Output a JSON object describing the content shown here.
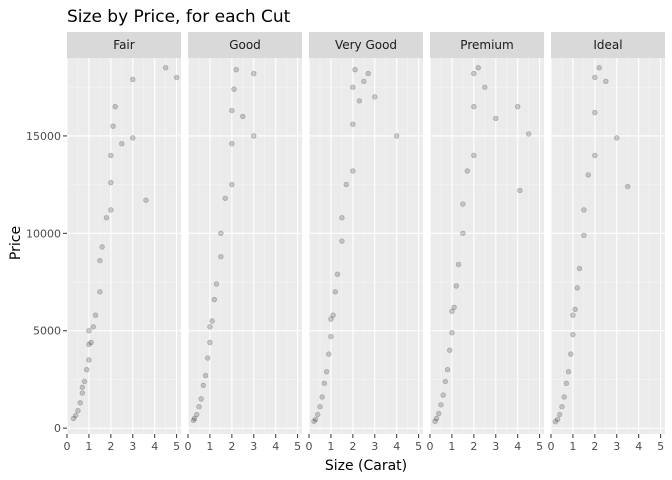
{
  "chart_data": {
    "type": "scatter",
    "title": "Size by Price, for each Cut",
    "xlabel": "Size (Carat)",
    "ylabel": "Price",
    "xlim": [
      0,
      5.2
    ],
    "ylim": [
      -300,
      19000
    ],
    "x_ticks": [
      0,
      1,
      2,
      3,
      4,
      5
    ],
    "y_ticks": [
      0,
      5000,
      10000,
      15000
    ],
    "y_tick_labels": [
      "0",
      "5000",
      "10000",
      "15000"
    ],
    "grid": true,
    "point_color": "#000000",
    "point_opacity": 0.06,
    "panel_background": "#ebebeb",
    "strip_background": "#d9d9d9",
    "facets": [
      {
        "name": "Fair",
        "points": [
          [
            0.3,
            500
          ],
          [
            0.4,
            650
          ],
          [
            0.5,
            900
          ],
          [
            0.6,
            1300
          ],
          [
            0.7,
            1800
          ],
          [
            0.7,
            2100
          ],
          [
            0.8,
            2400
          ],
          [
            0.9,
            3000
          ],
          [
            1.0,
            3500
          ],
          [
            1.0,
            4300
          ],
          [
            1.0,
            5000
          ],
          [
            1.1,
            4400
          ],
          [
            1.2,
            5200
          ],
          [
            1.3,
            5800
          ],
          [
            1.5,
            7000
          ],
          [
            1.5,
            8600
          ],
          [
            1.6,
            9300
          ],
          [
            1.8,
            10800
          ],
          [
            2.0,
            11200
          ],
          [
            2.0,
            12600
          ],
          [
            2.0,
            14000
          ],
          [
            2.1,
            15500
          ],
          [
            2.2,
            16500
          ],
          [
            2.5,
            14600
          ],
          [
            3.0,
            14900
          ],
          [
            3.0,
            17900
          ],
          [
            3.6,
            11700
          ],
          [
            4.5,
            18500
          ],
          [
            5.0,
            18000
          ]
        ]
      },
      {
        "name": "Good",
        "points": [
          [
            0.25,
            400
          ],
          [
            0.3,
            500
          ],
          [
            0.4,
            700
          ],
          [
            0.5,
            1100
          ],
          [
            0.6,
            1500
          ],
          [
            0.7,
            2200
          ],
          [
            0.8,
            2700
          ],
          [
            0.9,
            3600
          ],
          [
            1.0,
            4400
          ],
          [
            1.0,
            5200
          ],
          [
            1.1,
            5500
          ],
          [
            1.2,
            6600
          ],
          [
            1.3,
            7400
          ],
          [
            1.5,
            8800
          ],
          [
            1.5,
            10000
          ],
          [
            1.7,
            11800
          ],
          [
            2.0,
            12500
          ],
          [
            2.0,
            14600
          ],
          [
            2.0,
            16300
          ],
          [
            2.1,
            17400
          ],
          [
            2.2,
            18400
          ],
          [
            2.5,
            16000
          ],
          [
            3.0,
            18200
          ],
          [
            3.0,
            15000
          ]
        ]
      },
      {
        "name": "Very Good",
        "points": [
          [
            0.23,
            350
          ],
          [
            0.3,
            450
          ],
          [
            0.4,
            700
          ],
          [
            0.5,
            1100
          ],
          [
            0.6,
            1600
          ],
          [
            0.7,
            2300
          ],
          [
            0.8,
            2900
          ],
          [
            0.9,
            3800
          ],
          [
            1.0,
            4700
          ],
          [
            1.0,
            5600
          ],
          [
            1.1,
            5800
          ],
          [
            1.2,
            7000
          ],
          [
            1.3,
            7900
          ],
          [
            1.5,
            9600
          ],
          [
            1.5,
            10800
          ],
          [
            1.7,
            12500
          ],
          [
            2.0,
            13200
          ],
          [
            2.0,
            15600
          ],
          [
            2.0,
            17500
          ],
          [
            2.1,
            18400
          ],
          [
            2.3,
            16800
          ],
          [
            2.5,
            17800
          ],
          [
            2.7,
            18200
          ],
          [
            3.0,
            17000
          ],
          [
            4.0,
            15000
          ]
        ]
      },
      {
        "name": "Premium",
        "points": [
          [
            0.23,
            350
          ],
          [
            0.3,
            500
          ],
          [
            0.4,
            750
          ],
          [
            0.5,
            1200
          ],
          [
            0.6,
            1700
          ],
          [
            0.7,
            2400
          ],
          [
            0.8,
            3000
          ],
          [
            0.9,
            4000
          ],
          [
            1.0,
            4900
          ],
          [
            1.0,
            6000
          ],
          [
            1.1,
            6200
          ],
          [
            1.2,
            7300
          ],
          [
            1.3,
            8400
          ],
          [
            1.5,
            10000
          ],
          [
            1.5,
            11500
          ],
          [
            1.7,
            13200
          ],
          [
            2.0,
            14000
          ],
          [
            2.0,
            16500
          ],
          [
            2.0,
            18200
          ],
          [
            2.2,
            18500
          ],
          [
            2.5,
            17500
          ],
          [
            3.0,
            15900
          ],
          [
            4.0,
            16500
          ],
          [
            4.5,
            15100
          ],
          [
            4.1,
            12200
          ]
        ]
      },
      {
        "name": "Ideal",
        "points": [
          [
            0.2,
            330
          ],
          [
            0.3,
            450
          ],
          [
            0.4,
            700
          ],
          [
            0.5,
            1100
          ],
          [
            0.6,
            1600
          ],
          [
            0.7,
            2300
          ],
          [
            0.8,
            2900
          ],
          [
            0.9,
            3800
          ],
          [
            1.0,
            4800
          ],
          [
            1.0,
            5800
          ],
          [
            1.1,
            6100
          ],
          [
            1.2,
            7200
          ],
          [
            1.3,
            8200
          ],
          [
            1.5,
            9900
          ],
          [
            1.5,
            11200
          ],
          [
            1.7,
            13000
          ],
          [
            2.0,
            14000
          ],
          [
            2.0,
            16200
          ],
          [
            2.0,
            18000
          ],
          [
            2.2,
            18500
          ],
          [
            2.5,
            17800
          ],
          [
            3.0,
            14900
          ],
          [
            3.5,
            12400
          ]
        ]
      }
    ]
  }
}
